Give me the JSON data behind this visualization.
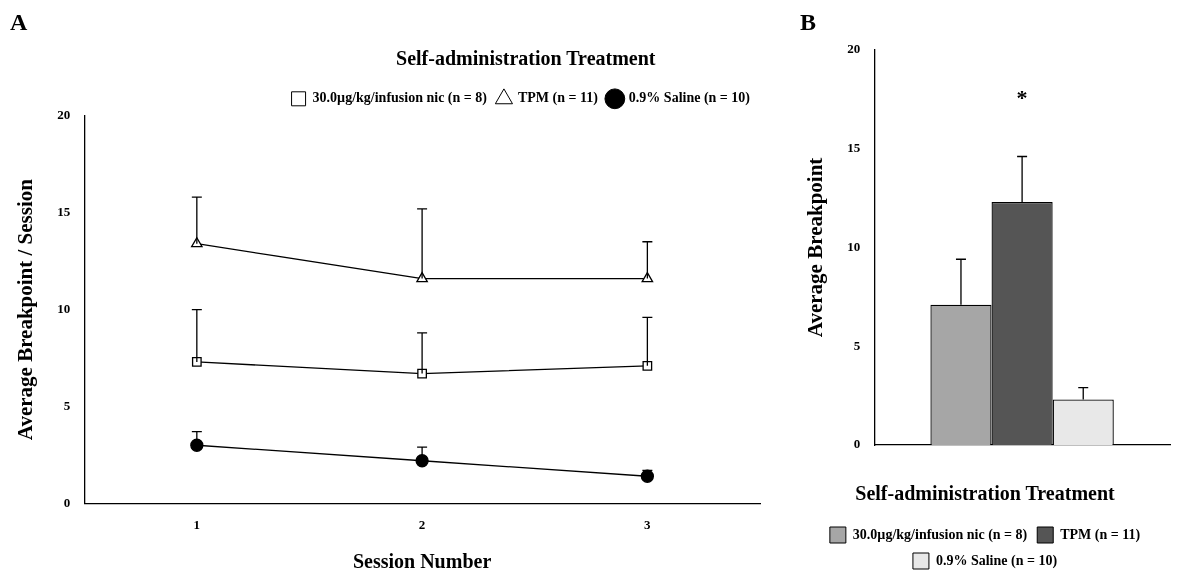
{
  "chart_data": [
    {
      "type": "line",
      "title": "A",
      "xlabel": "Session Number",
      "ylabel": "Average Breakpoint / Session",
      "legend_title": "Self-administration Treatment",
      "legend": "top right",
      "x": [
        1,
        2,
        3
      ],
      "xlim": [
        0.5,
        3.5
      ],
      "xticks": [
        1,
        2,
        3
      ],
      "ylim": [
        0,
        20
      ],
      "yticks": [
        0,
        5,
        10,
        15,
        20
      ],
      "grid": false,
      "line_style": "solid",
      "series": [
        {
          "name": "30.0µg/kg/infusion nic (n = 8)",
          "color": "#000000",
          "marker": "square",
          "values": [
            7.3,
            6.7,
            7.1
          ],
          "errors": [
            [
              7.3,
              10.0
            ],
            [
              6.7,
              8.8
            ],
            [
              7.1,
              9.6
            ]
          ]
        },
        {
          "name": "TPM (n = 11)",
          "color": "#000000",
          "marker": "triangle",
          "values": [
            13.4,
            11.6,
            11.6
          ],
          "errors": [
            [
              13.4,
              15.8
            ],
            [
              11.6,
              15.2
            ],
            [
              11.6,
              13.5
            ]
          ]
        },
        {
          "name": "0.9% Saline (n = 10)",
          "color": "#000000",
          "marker": "circle",
          "values": [
            3.0,
            2.2,
            1.4
          ],
          "errors": [
            [
              3.0,
              3.7
            ],
            [
              2.2,
              2.9
            ],
            [
              1.4,
              1.7
            ]
          ]
        }
      ]
    },
    {
      "type": "bar",
      "title": "B",
      "ylabel": "Average Breakpoint",
      "legend_title": "Self-administration Treatment",
      "legend": "bottom",
      "categories": [
        null
      ],
      "ylim": [
        0,
        20
      ],
      "yticks": [
        0,
        5,
        10,
        15,
        20
      ],
      "grid": false,
      "tick_labels": "y",
      "annotations": [
        "*"
      ],
      "series": [
        {
          "name": "30.0µg/kg/infusion nic (n = 8)",
          "color": "#a6a6a6",
          "values": [
            7.1
          ],
          "errors": [
            [
              7.1,
              9.4
            ]
          ]
        },
        {
          "name": "TPM (n = 11)",
          "color": "#555555",
          "values": [
            12.3
          ],
          "errors": [
            [
              12.3,
              14.6
            ]
          ]
        },
        {
          "name": "0.9% Saline (n = 10)",
          "color": "#e8e8e8",
          "values": [
            2.3
          ],
          "errors": [
            [
              2.3,
              2.9
            ]
          ]
        }
      ]
    }
  ]
}
